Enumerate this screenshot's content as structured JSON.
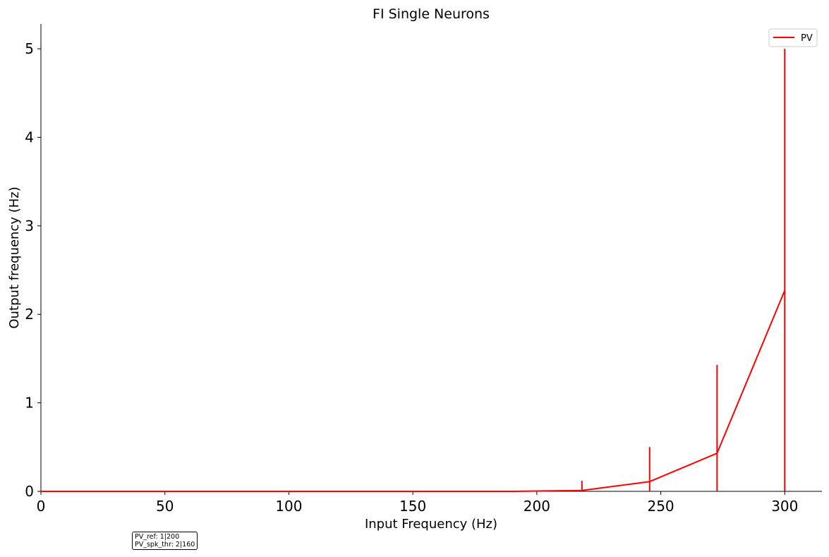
{
  "chart_data": {
    "type": "line",
    "title": "FI Single Neurons",
    "xlabel": "Input Frequency (Hz)",
    "ylabel": "Output frequency (Hz)",
    "xlim": [
      0,
      315
    ],
    "ylim": [
      0,
      5.28
    ],
    "xticks": [
      0,
      50,
      100,
      150,
      200,
      250,
      300
    ],
    "yticks": [
      0,
      1,
      2,
      3,
      4,
      5
    ],
    "grid": false,
    "legend_position": "top-right",
    "series": [
      {
        "name": "PV",
        "color": "#ff0000",
        "x": [
          0,
          27.3,
          54.5,
          81.8,
          109.1,
          136.4,
          163.6,
          190.9,
          218.2,
          245.5,
          272.7,
          300
        ],
        "y": [
          0,
          0,
          0,
          0,
          0,
          0,
          0,
          0,
          0.01,
          0.11,
          0.43,
          2.27
        ],
        "error": [
          0,
          0,
          0,
          0,
          0,
          0,
          0,
          0,
          0.11,
          0.39,
          1.0,
          2.73
        ]
      }
    ]
  },
  "annotation": {
    "lines": [
      "PV_ref: 1|200",
      "PV_spk_thr: 2|160"
    ]
  }
}
